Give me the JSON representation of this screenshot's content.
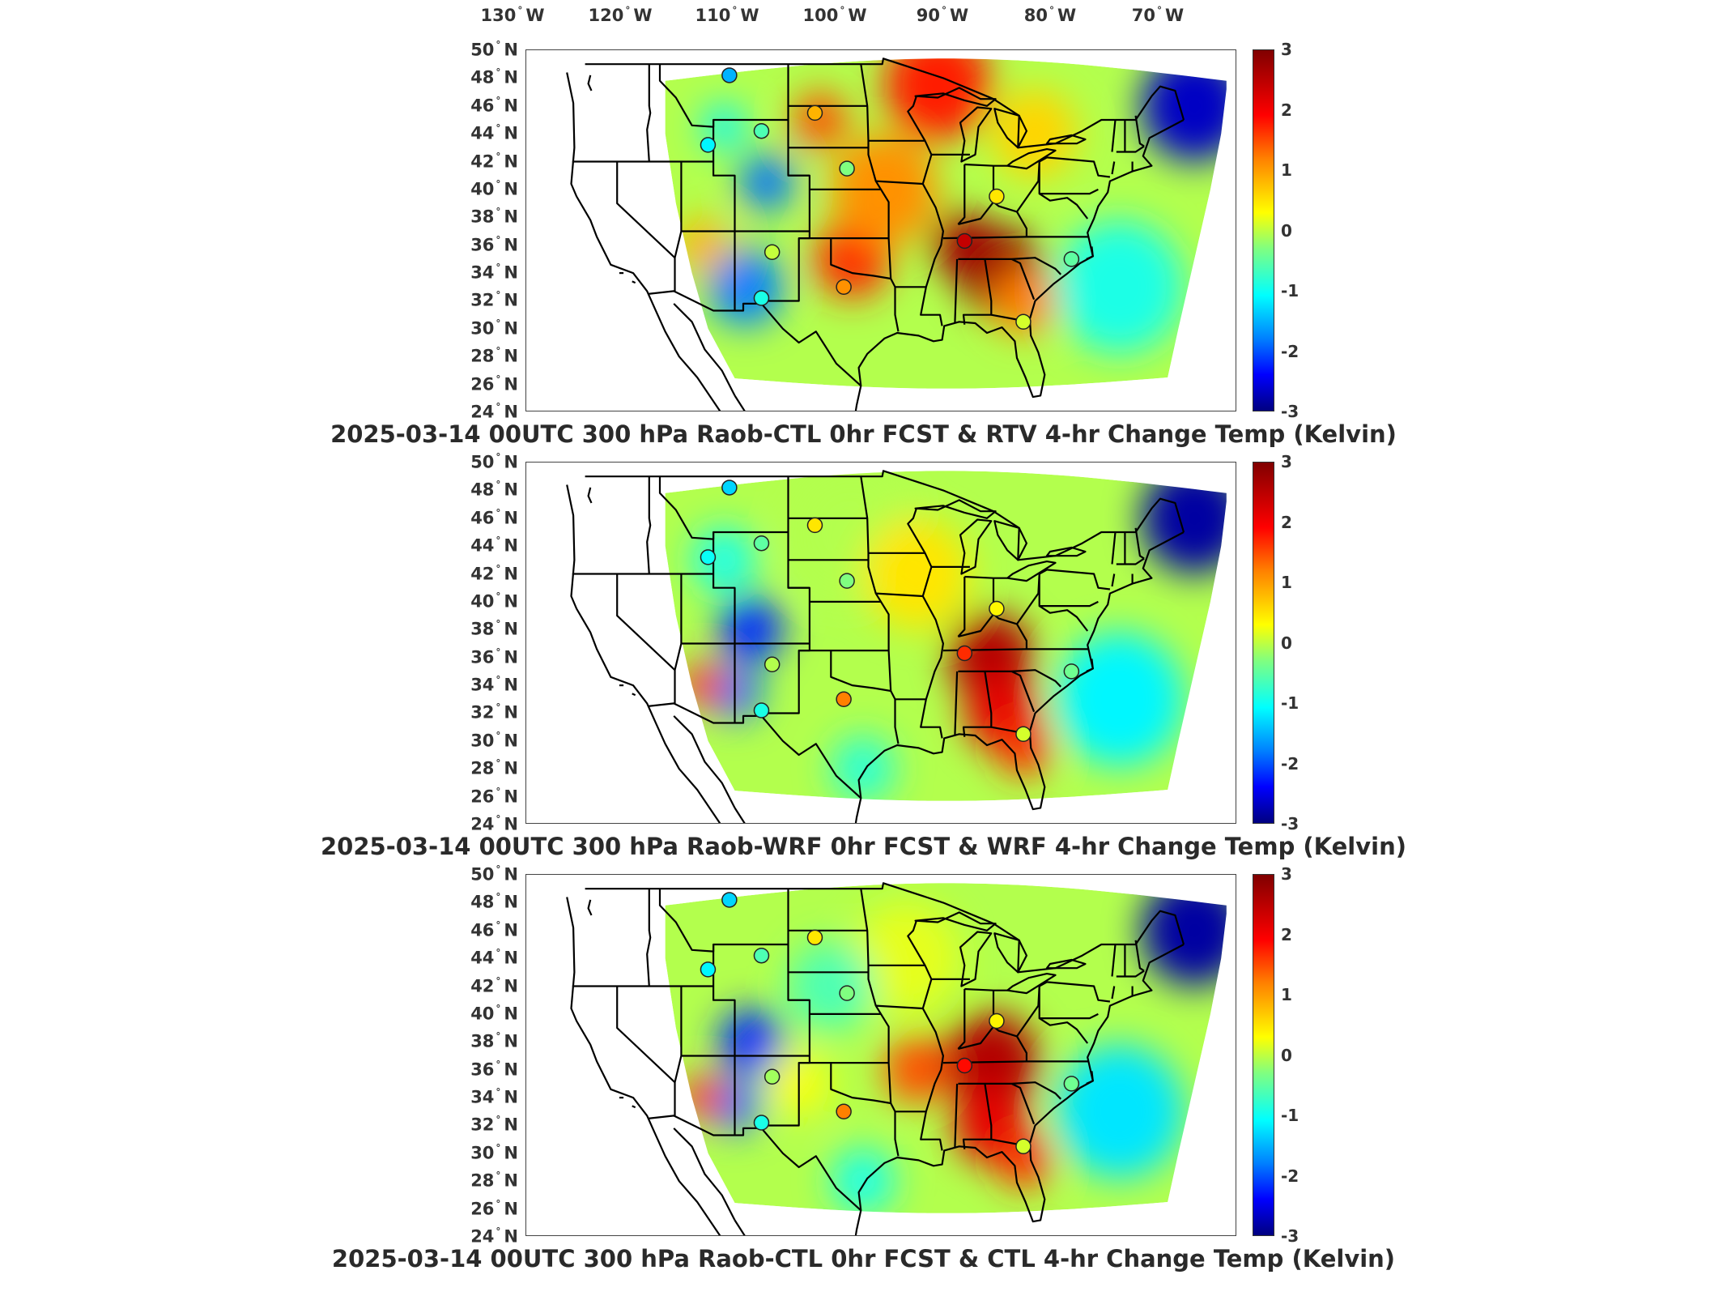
{
  "longitude_labels": [
    "130",
    "120",
    "110",
    "100",
    "90",
    "80",
    "70"
  ],
  "longitude_suffix": "W",
  "latitude_labels": [
    "50",
    "48",
    "46",
    "44",
    "42",
    "40",
    "38",
    "36",
    "34",
    "32",
    "30",
    "28",
    "26",
    "24"
  ],
  "latitude_suffix": "N",
  "colorbar": {
    "ticks": [
      "3",
      "2",
      "1",
      "0",
      "-1",
      "-2",
      "-3"
    ],
    "colors": [
      "#800000",
      "#ff0000",
      "#ff8000",
      "#ffff00",
      "#80ff80",
      "#00ffff",
      "#0080ff",
      "#0000ff",
      "#000080"
    ]
  },
  "panels": [
    {
      "title": "2025-03-14 00UTC 300 hPa Raob-CTL 0hr FCST & RTV 4-hr Change Temp (Kelvin)",
      "style": "rtv"
    },
    {
      "title": "2025-03-14 00UTC 300 hPa Raob-WRF 0hr FCST & WRF 4-hr Change Temp (Kelvin)",
      "style": "wrf"
    },
    {
      "title": "2025-03-14 00UTC 300 hPa Raob-CTL 0hr FCST & CTL 4-hr Change Temp (Kelvin)",
      "style": "ctl"
    }
  ],
  "stations": [
    {
      "name": "",
      "lon": -109.5,
      "lat": 48.2,
      "value": [
        -1.2,
        -1.0,
        -1.0
      ]
    },
    {
      "name": "",
      "lon": -106.5,
      "lat": 44.2,
      "value": [
        -0.3,
        -0.2,
        -0.3
      ]
    },
    {
      "name": "",
      "lon": -111.5,
      "lat": 43.2,
      "value": [
        -0.8,
        -0.7,
        -0.8
      ]
    },
    {
      "name": "",
      "lon": -101.5,
      "lat": 45.5,
      "value": [
        1.2,
        0.9,
        0.9
      ]
    },
    {
      "name": "",
      "lon": -98.5,
      "lat": 41.5,
      "value": [
        0.0,
        0.0,
        0.0
      ]
    },
    {
      "name": "",
      "lon": -105.5,
      "lat": 35.5,
      "value": [
        0.4,
        0.3,
        0.2
      ]
    },
    {
      "name": "",
      "lon": -106.5,
      "lat": 32.2,
      "value": [
        -0.6,
        -0.6,
        -0.6
      ]
    },
    {
      "name": "",
      "lon": -98.8,
      "lat": 33.0,
      "value": [
        1.4,
        1.5,
        1.5
      ]
    },
    {
      "name": "",
      "lon": -84.5,
      "lat": 39.5,
      "value": [
        0.9,
        0.8,
        0.8
      ]
    },
    {
      "name": "",
      "lon": -87.5,
      "lat": 36.3,
      "value": [
        2.6,
        2.0,
        2.2
      ]
    },
    {
      "name": "",
      "lon": -82.0,
      "lat": 30.5,
      "value": [
        0.5,
        0.5,
        0.5
      ]
    },
    {
      "name": "",
      "lon": -77.5,
      "lat": 35.0,
      "value": [
        -0.2,
        -0.1,
        -0.1
      ]
    }
  ]
}
